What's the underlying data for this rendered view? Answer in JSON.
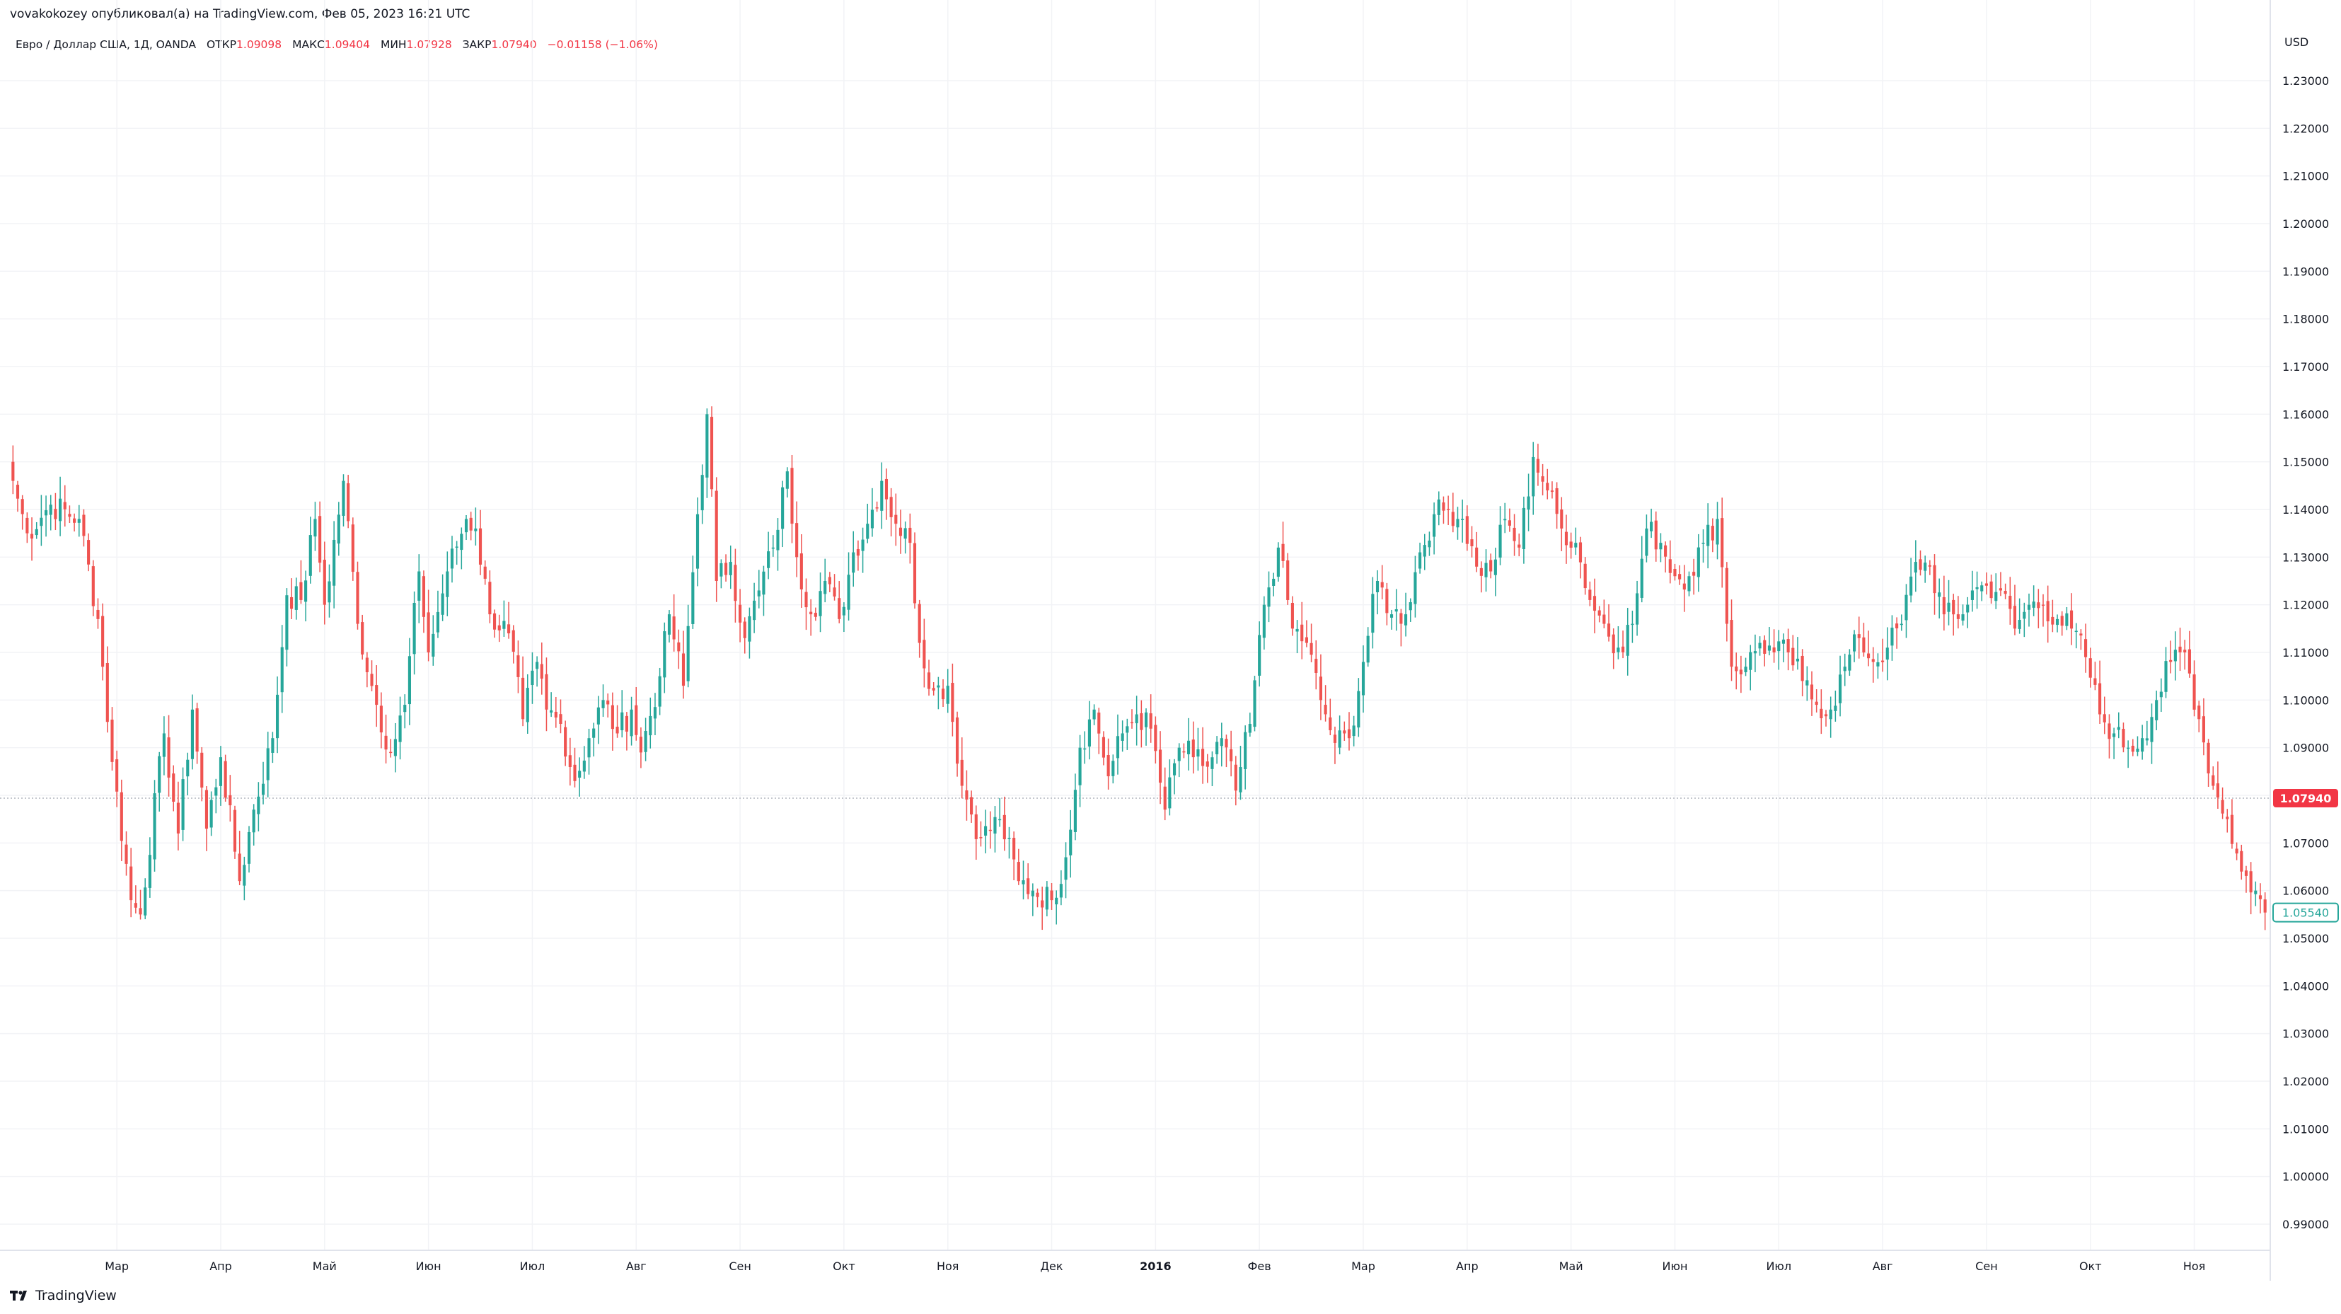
{
  "header": {
    "published_by": "vovakokozey опубликовал(а) на TradingView.com, Фев 05, 2023 16:21 UTC"
  },
  "symbol": {
    "title": "Евро / Доллар США, 1Д, OANDA",
    "open_label": "ОТКР",
    "open_value": "1.09098",
    "high_label": "МАКС",
    "high_value": "1.09404",
    "low_label": "МИН",
    "low_value": "1.07928",
    "close_label": "ЗАКР",
    "close_value": "1.07940",
    "change": "−0.01158 (−1.06%)"
  },
  "price_axis": {
    "currency": "USD",
    "ticks": [
      "1.23000",
      "1.22000",
      "1.21000",
      "1.20000",
      "1.19000",
      "1.18000",
      "1.17000",
      "1.16000",
      "1.15000",
      "1.14000",
      "1.13000",
      "1.12000",
      "1.11000",
      "1.10000",
      "1.09000",
      "1.08000",
      "1.07000",
      "1.06000",
      "1.05000",
      "1.04000",
      "1.03000",
      "1.02000",
      "1.01000",
      "1.00000",
      "0.99000"
    ],
    "last_price_label": "1.07940",
    "ghost_price_label": "1.05540"
  },
  "footer": {
    "brand": "TradingView",
    "logo_icon": "tradingview-logo-icon"
  },
  "colors": {
    "up": "#26a69a",
    "down": "#ef5350",
    "last_price_bg": "#f23645",
    "ghost_border": "#26a69a",
    "grid": "#f2f3f6",
    "axis_line": "#e0e3eb"
  },
  "chart_data": {
    "type": "candlestick",
    "y_range": [
      0.985,
      1.235
    ],
    "x_labels": [
      {
        "label": "Мар",
        "bar": 22
      },
      {
        "label": "Апр",
        "bar": 44
      },
      {
        "label": "Май",
        "bar": 66
      },
      {
        "label": "Июн",
        "bar": 88
      },
      {
        "label": "Июл",
        "bar": 110
      },
      {
        "label": "Авг",
        "bar": 132
      },
      {
        "label": "Сен",
        "bar": 154
      },
      {
        "label": "Окт",
        "bar": 176
      },
      {
        "label": "Ноя",
        "bar": 198
      },
      {
        "label": "Дек",
        "bar": 220
      },
      {
        "label": "2016",
        "bar": 242,
        "bold": true
      },
      {
        "label": "Фев",
        "bar": 264
      },
      {
        "label": "Мар",
        "bar": 286
      },
      {
        "label": "Апр",
        "bar": 308
      },
      {
        "label": "Май",
        "bar": 330
      },
      {
        "label": "Июн",
        "bar": 352
      },
      {
        "label": "Июл",
        "bar": 374
      },
      {
        "label": "Авг",
        "bar": 396
      },
      {
        "label": "Сен",
        "bar": 418
      },
      {
        "label": "Окт",
        "bar": 440
      },
      {
        "label": "Ноя",
        "bar": 462
      }
    ],
    "close_anchors": [
      [
        0,
        1.146
      ],
      [
        3,
        1.135
      ],
      [
        8,
        1.141
      ],
      [
        14,
        1.138
      ],
      [
        18,
        1.117
      ],
      [
        21,
        1.087
      ],
      [
        25,
        1.058
      ],
      [
        27,
        1.055
      ],
      [
        32,
        1.093
      ],
      [
        35,
        1.072
      ],
      [
        38,
        1.098
      ],
      [
        41,
        1.073
      ],
      [
        44,
        1.088
      ],
      [
        48,
        1.062
      ],
      [
        51,
        1.077
      ],
      [
        55,
        1.092
      ],
      [
        58,
        1.122
      ],
      [
        61,
        1.121
      ],
      [
        64,
        1.138
      ],
      [
        66,
        1.12
      ],
      [
        70,
        1.146
      ],
      [
        73,
        1.116
      ],
      [
        77,
        1.099
      ],
      [
        80,
        1.089
      ],
      [
        83,
        1.099
      ],
      [
        86,
        1.127
      ],
      [
        88,
        1.11
      ],
      [
        92,
        1.127
      ],
      [
        96,
        1.138
      ],
      [
        98,
        1.136
      ],
      [
        101,
        1.118
      ],
      [
        105,
        1.114
      ],
      [
        108,
        1.096
      ],
      [
        111,
        1.108
      ],
      [
        113,
        1.098
      ],
      [
        116,
        1.095
      ],
      [
        119,
        1.083
      ],
      [
        122,
        1.092
      ],
      [
        125,
        1.1
      ],
      [
        128,
        1.093
      ],
      [
        131,
        1.098
      ],
      [
        133,
        1.089
      ],
      [
        137,
        1.105
      ],
      [
        139,
        1.118
      ],
      [
        142,
        1.103
      ],
      [
        145,
        1.139
      ],
      [
        147,
        1.16
      ],
      [
        149,
        1.125
      ],
      [
        152,
        1.129
      ],
      [
        155,
        1.113
      ],
      [
        158,
        1.123
      ],
      [
        161,
        1.132
      ],
      [
        164,
        1.148
      ],
      [
        166,
        1.13
      ],
      [
        169,
        1.118
      ],
      [
        172,
        1.125
      ],
      [
        175,
        1.117
      ],
      [
        178,
        1.131
      ],
      [
        181,
        1.137
      ],
      [
        184,
        1.146
      ],
      [
        187,
        1.137
      ],
      [
        190,
        1.133
      ],
      [
        192,
        1.112
      ],
      [
        195,
        1.102
      ],
      [
        198,
        1.103
      ],
      [
        201,
        1.082
      ],
      [
        205,
        1.071
      ],
      [
        209,
        1.075
      ],
      [
        213,
        1.062
      ],
      [
        216,
        1.06
      ],
      [
        220,
        1.058
      ],
      [
        223,
        1.067
      ],
      [
        226,
        1.09
      ],
      [
        229,
        1.098
      ],
      [
        232,
        1.084
      ],
      [
        235,
        1.093
      ],
      [
        238,
        1.097
      ],
      [
        241,
        1.094
      ],
      [
        244,
        1.077
      ],
      [
        247,
        1.09
      ],
      [
        250,
        1.088
      ],
      [
        253,
        1.086
      ],
      [
        256,
        1.092
      ],
      [
        259,
        1.081
      ],
      [
        262,
        1.095
      ],
      [
        265,
        1.12
      ],
      [
        268,
        1.132
      ],
      [
        271,
        1.115
      ],
      [
        274,
        1.112
      ],
      [
        277,
        1.1
      ],
      [
        280,
        1.091
      ],
      [
        283,
        1.092
      ],
      [
        286,
        1.108
      ],
      [
        289,
        1.125
      ],
      [
        292,
        1.118
      ],
      [
        295,
        1.118
      ],
      [
        298,
        1.131
      ],
      [
        301,
        1.139
      ],
      [
        304,
        1.14
      ],
      [
        307,
        1.138
      ],
      [
        310,
        1.128
      ],
      [
        313,
        1.127
      ],
      [
        316,
        1.138
      ],
      [
        319,
        1.132
      ],
      [
        322,
        1.151
      ],
      [
        325,
        1.144
      ],
      [
        328,
        1.136
      ],
      [
        331,
        1.133
      ],
      [
        334,
        1.121
      ],
      [
        337,
        1.116
      ],
      [
        340,
        1.111
      ],
      [
        343,
        1.116
      ],
      [
        346,
        1.136
      ],
      [
        349,
        1.133
      ],
      [
        352,
        1.126
      ],
      [
        355,
        1.126
      ],
      [
        358,
        1.133
      ],
      [
        361,
        1.138
      ],
      [
        364,
        1.107
      ],
      [
        367,
        1.107
      ],
      [
        370,
        1.112
      ],
      [
        373,
        1.11
      ],
      [
        376,
        1.11
      ],
      [
        379,
        1.104
      ],
      [
        382,
        1.099
      ],
      [
        385,
        1.098
      ],
      [
        388,
        1.107
      ],
      [
        391,
        1.113
      ],
      [
        394,
        1.108
      ],
      [
        397,
        1.111
      ],
      [
        400,
        1.116
      ],
      [
        403,
        1.129
      ],
      [
        406,
        1.128
      ],
      [
        409,
        1.118
      ],
      [
        412,
        1.117
      ],
      [
        415,
        1.123
      ],
      [
        418,
        1.124
      ],
      [
        421,
        1.123
      ],
      [
        424,
        1.115
      ],
      [
        427,
        1.12
      ],
      [
        430,
        1.12
      ],
      [
        433,
        1.117
      ],
      [
        436,
        1.115
      ],
      [
        439,
        1.109
      ],
      [
        442,
        1.097
      ],
      [
        445,
        1.093
      ],
      [
        448,
        1.09
      ],
      [
        451,
        1.092
      ],
      [
        454,
        1.1
      ],
      [
        457,
        1.108
      ],
      [
        460,
        1.11
      ],
      [
        463,
        1.096
      ],
      [
        466,
        1.082
      ],
      [
        469,
        1.075
      ],
      [
        472,
        1.064
      ],
      [
        475,
        1.06
      ],
      [
        477,
        1.0554
      ]
    ]
  }
}
